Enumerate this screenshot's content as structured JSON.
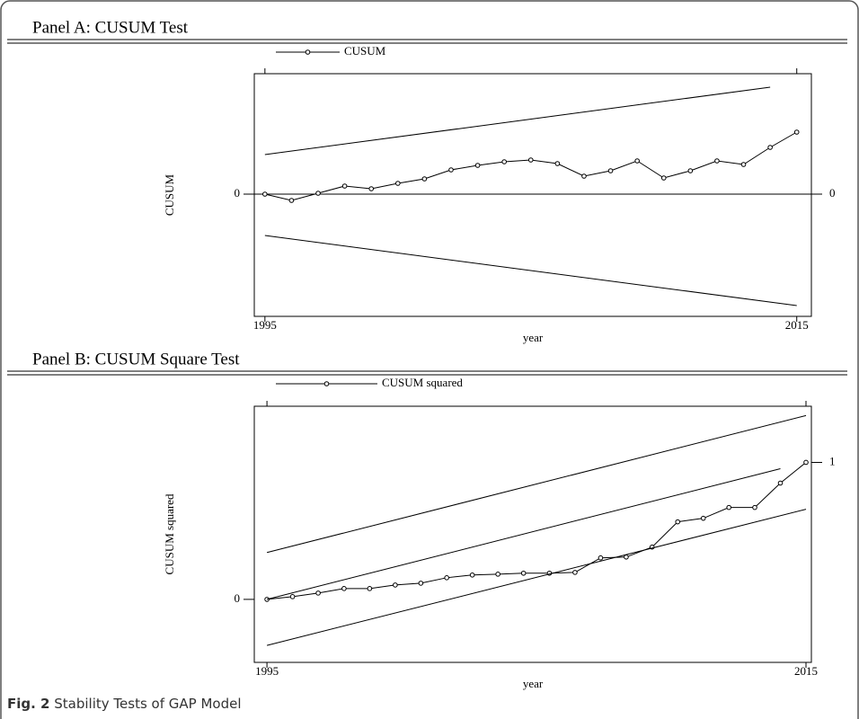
{
  "caption": {
    "label": "Fig. 2",
    "text": "Stability Tests of GAP Model"
  },
  "chart_data": [
    {
      "type": "line",
      "title": "Panel A: CUSUM Test",
      "x_label": "year",
      "y_label": "CUSUM",
      "xlim": [
        1994.6,
        2015.55
      ],
      "xticks": [
        1995,
        2015
      ],
      "ylim": [
        -13.6,
        13.4
      ],
      "yticks": [
        0
      ],
      "y2lim": [
        -13.6,
        13.4
      ],
      "y2ticks": [
        0
      ],
      "reference_line": 0,
      "series": [
        {
          "name": "CUSUM",
          "color": "#000000",
          "marker": "circle",
          "x": [
            1995,
            1996,
            1997,
            1998,
            1999,
            2000,
            2001,
            2002,
            2003,
            2004,
            2005,
            2006,
            2007,
            2008,
            2009,
            2010,
            2011,
            2012,
            2013,
            2014,
            2015
          ],
          "values": [
            0,
            -0.7,
            0.1,
            0.9,
            0.6,
            1.2,
            1.7,
            2.7,
            3.2,
            3.6,
            3.8,
            3.4,
            2.0,
            2.6,
            3.7,
            1.8,
            2.6,
            3.7,
            3.3,
            5.2,
            6.9
          ]
        },
        {
          "color": "#000000",
          "x": [
            1995,
            2014
          ],
          "values": [
            4.4,
            11.9
          ]
        },
        {
          "color": "#000000",
          "x": [
            1995,
            2015
          ],
          "values": [
            -4.6,
            -12.4
          ]
        }
      ]
    },
    {
      "type": "line",
      "title": "Panel B:  CUSUM Square Test",
      "x_label": "year",
      "y_label": "CUSUM squared",
      "xlim": [
        1994.53,
        2015.2
      ],
      "xticks": [
        1995,
        2015
      ],
      "ylim": [
        -0.46,
        1.41
      ],
      "yticks": [
        0
      ],
      "y2lim": [
        -0.46,
        1.41
      ],
      "y2ticks": [
        1
      ],
      "series": [
        {
          "name": "CUSUM squared",
          "color": "#000000",
          "marker": "circle",
          "x": [
            1995,
            1995.95,
            1996.9,
            1997.86,
            1998.81,
            1999.76,
            2000.71,
            2001.67,
            2002.62,
            2003.57,
            2004.52,
            2005.48,
            2006.43,
            2007.38,
            2008.33,
            2009.29,
            2010.24,
            2011.19,
            2012.14,
            2013.1,
            2014.05,
            2015
          ],
          "values": [
            0,
            0.02,
            0.046,
            0.079,
            0.079,
            0.105,
            0.118,
            0.158,
            0.178,
            0.184,
            0.191,
            0.191,
            0.197,
            0.303,
            0.309,
            0.382,
            0.566,
            0.592,
            0.671,
            0.671,
            0.849,
            1.0
          ]
        },
        {
          "color": "#000000",
          "x": [
            1995,
            2015
          ],
          "values": [
            0.342,
            1.342
          ]
        },
        {
          "color": "#000000",
          "x": [
            1995,
            2014.05
          ],
          "values": [
            0,
            0.954
          ]
        },
        {
          "color": "#000000",
          "x": [
            1995,
            2015
          ],
          "values": [
            -0.336,
            0.658
          ]
        }
      ]
    }
  ]
}
